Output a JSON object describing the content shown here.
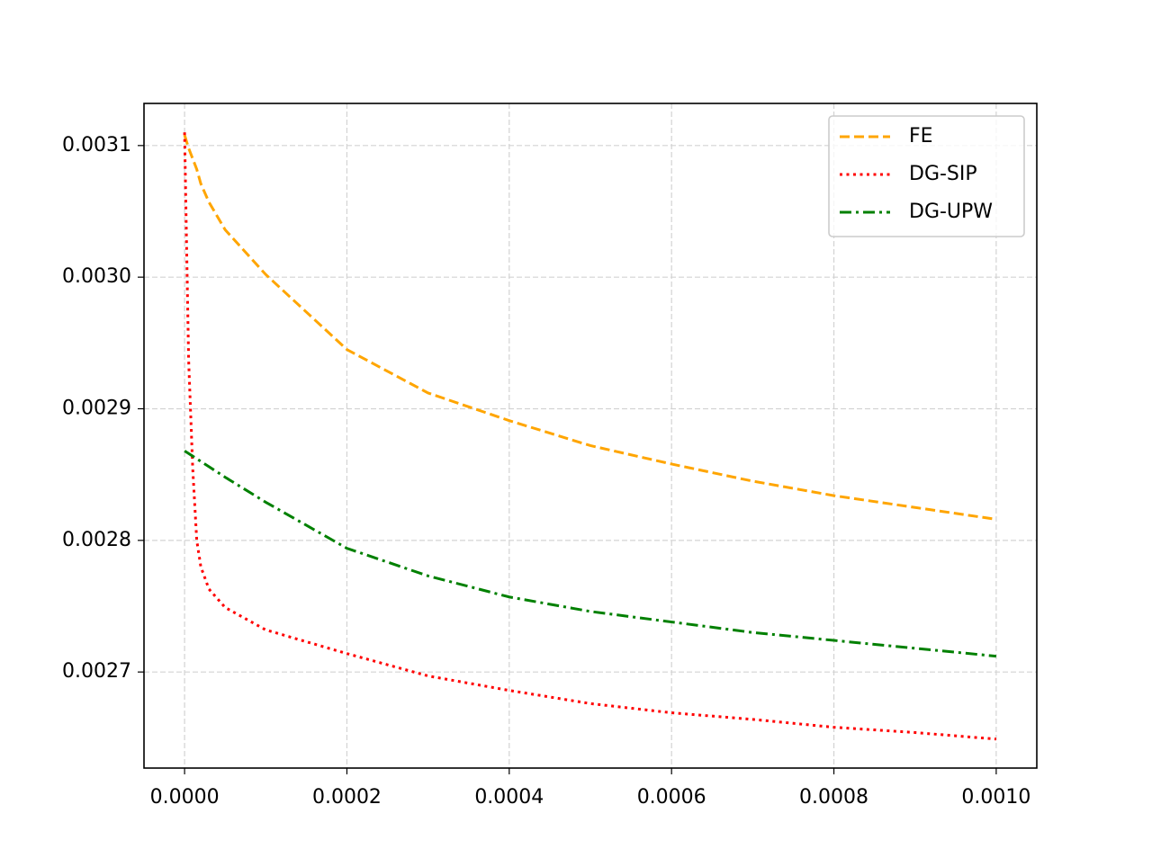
{
  "chart_data": {
    "type": "line",
    "x": [
      0,
      5e-06,
      1e-05,
      1.5e-05,
      2e-05,
      3e-05,
      5e-05,
      0.0001,
      0.0002,
      0.0003,
      0.0004,
      0.0005,
      0.0006,
      0.0007,
      0.0008,
      0.0009,
      0.001
    ],
    "series": [
      {
        "name": "FE",
        "color": "#ffa500",
        "linestyle": "dashed",
        "values": [
          0.003108,
          0.003098,
          0.00309,
          0.003082,
          0.003071,
          0.003057,
          0.003036,
          0.003002,
          0.002945,
          0.002912,
          0.002891,
          0.002872,
          0.002858,
          0.002845,
          0.002834,
          0.002825,
          0.002816
        ]
      },
      {
        "name": "DG-SIP",
        "color": "#ff0000",
        "linestyle": "dotted",
        "values": [
          0.00311,
          0.002937,
          0.002855,
          0.0028,
          0.00278,
          0.002763,
          0.002749,
          0.002732,
          0.002714,
          0.002697,
          0.002686,
          0.002676,
          0.002669,
          0.002664,
          0.002658,
          0.002654,
          0.002649
        ]
      },
      {
        "name": "DG-UPW",
        "color": "#008000",
        "linestyle": "dashdot",
        "values": [
          0.002868,
          0.002866,
          0.002864,
          0.002862,
          0.00286,
          0.002856,
          0.002848,
          0.002829,
          0.002794,
          0.002773,
          0.002757,
          0.002746,
          0.002738,
          0.00273,
          0.002724,
          0.002718,
          0.002712
        ]
      }
    ],
    "xlim": [
      -5e-05,
      0.00105
    ],
    "ylim": [
      0.002627,
      0.003132
    ],
    "xticks": [
      {
        "value": 0,
        "label": "0.0000"
      },
      0.0002,
      0.0004,
      0.0006,
      0.0008,
      {
        "value": 0.001,
        "label": "0.0010"
      }
    ],
    "yticks": [
      0.0027,
      0.0028,
      0.0029,
      {
        "value": 0.003,
        "label": "0.0030"
      },
      0.0031
    ],
    "grid": true,
    "legend": "upper right"
  }
}
